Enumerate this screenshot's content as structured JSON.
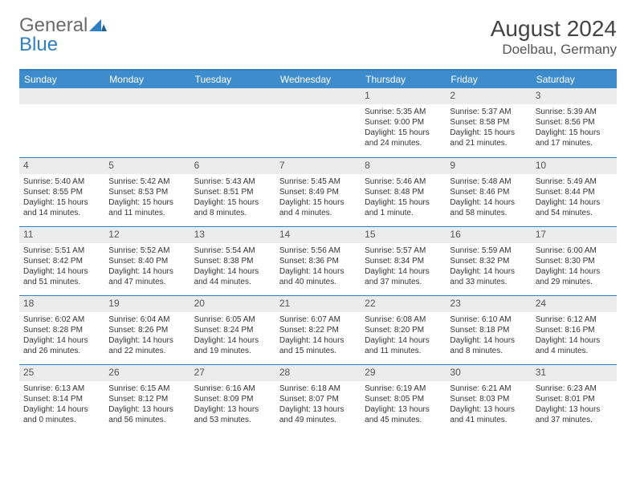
{
  "logo": {
    "part1": "General",
    "part2": "Blue"
  },
  "title": "August 2024",
  "location": "Doelbau, Germany",
  "colors": {
    "header_bg": "#3e8ccc",
    "border": "#2f7fc2",
    "daynum_bg": "#ececec",
    "text": "#333333"
  },
  "day_headers": [
    "Sunday",
    "Monday",
    "Tuesday",
    "Wednesday",
    "Thursday",
    "Friday",
    "Saturday"
  ],
  "leading_blanks": 4,
  "days": [
    {
      "n": 1,
      "sunrise": "5:35 AM",
      "sunset": "9:00 PM",
      "daylight": "15 hours and 24 minutes."
    },
    {
      "n": 2,
      "sunrise": "5:37 AM",
      "sunset": "8:58 PM",
      "daylight": "15 hours and 21 minutes."
    },
    {
      "n": 3,
      "sunrise": "5:39 AM",
      "sunset": "8:56 PM",
      "daylight": "15 hours and 17 minutes."
    },
    {
      "n": 4,
      "sunrise": "5:40 AM",
      "sunset": "8:55 PM",
      "daylight": "15 hours and 14 minutes."
    },
    {
      "n": 5,
      "sunrise": "5:42 AM",
      "sunset": "8:53 PM",
      "daylight": "15 hours and 11 minutes."
    },
    {
      "n": 6,
      "sunrise": "5:43 AM",
      "sunset": "8:51 PM",
      "daylight": "15 hours and 8 minutes."
    },
    {
      "n": 7,
      "sunrise": "5:45 AM",
      "sunset": "8:49 PM",
      "daylight": "15 hours and 4 minutes."
    },
    {
      "n": 8,
      "sunrise": "5:46 AM",
      "sunset": "8:48 PM",
      "daylight": "15 hours and 1 minute."
    },
    {
      "n": 9,
      "sunrise": "5:48 AM",
      "sunset": "8:46 PM",
      "daylight": "14 hours and 58 minutes."
    },
    {
      "n": 10,
      "sunrise": "5:49 AM",
      "sunset": "8:44 PM",
      "daylight": "14 hours and 54 minutes."
    },
    {
      "n": 11,
      "sunrise": "5:51 AM",
      "sunset": "8:42 PM",
      "daylight": "14 hours and 51 minutes."
    },
    {
      "n": 12,
      "sunrise": "5:52 AM",
      "sunset": "8:40 PM",
      "daylight": "14 hours and 47 minutes."
    },
    {
      "n": 13,
      "sunrise": "5:54 AM",
      "sunset": "8:38 PM",
      "daylight": "14 hours and 44 minutes."
    },
    {
      "n": 14,
      "sunrise": "5:56 AM",
      "sunset": "8:36 PM",
      "daylight": "14 hours and 40 minutes."
    },
    {
      "n": 15,
      "sunrise": "5:57 AM",
      "sunset": "8:34 PM",
      "daylight": "14 hours and 37 minutes."
    },
    {
      "n": 16,
      "sunrise": "5:59 AM",
      "sunset": "8:32 PM",
      "daylight": "14 hours and 33 minutes."
    },
    {
      "n": 17,
      "sunrise": "6:00 AM",
      "sunset": "8:30 PM",
      "daylight": "14 hours and 29 minutes."
    },
    {
      "n": 18,
      "sunrise": "6:02 AM",
      "sunset": "8:28 PM",
      "daylight": "14 hours and 26 minutes."
    },
    {
      "n": 19,
      "sunrise": "6:04 AM",
      "sunset": "8:26 PM",
      "daylight": "14 hours and 22 minutes."
    },
    {
      "n": 20,
      "sunrise": "6:05 AM",
      "sunset": "8:24 PM",
      "daylight": "14 hours and 19 minutes."
    },
    {
      "n": 21,
      "sunrise": "6:07 AM",
      "sunset": "8:22 PM",
      "daylight": "14 hours and 15 minutes."
    },
    {
      "n": 22,
      "sunrise": "6:08 AM",
      "sunset": "8:20 PM",
      "daylight": "14 hours and 11 minutes."
    },
    {
      "n": 23,
      "sunrise": "6:10 AM",
      "sunset": "8:18 PM",
      "daylight": "14 hours and 8 minutes."
    },
    {
      "n": 24,
      "sunrise": "6:12 AM",
      "sunset": "8:16 PM",
      "daylight": "14 hours and 4 minutes."
    },
    {
      "n": 25,
      "sunrise": "6:13 AM",
      "sunset": "8:14 PM",
      "daylight": "14 hours and 0 minutes."
    },
    {
      "n": 26,
      "sunrise": "6:15 AM",
      "sunset": "8:12 PM",
      "daylight": "13 hours and 56 minutes."
    },
    {
      "n": 27,
      "sunrise": "6:16 AM",
      "sunset": "8:09 PM",
      "daylight": "13 hours and 53 minutes."
    },
    {
      "n": 28,
      "sunrise": "6:18 AM",
      "sunset": "8:07 PM",
      "daylight": "13 hours and 49 minutes."
    },
    {
      "n": 29,
      "sunrise": "6:19 AM",
      "sunset": "8:05 PM",
      "daylight": "13 hours and 45 minutes."
    },
    {
      "n": 30,
      "sunrise": "6:21 AM",
      "sunset": "8:03 PM",
      "daylight": "13 hours and 41 minutes."
    },
    {
      "n": 31,
      "sunrise": "6:23 AM",
      "sunset": "8:01 PM",
      "daylight": "13 hours and 37 minutes."
    }
  ]
}
